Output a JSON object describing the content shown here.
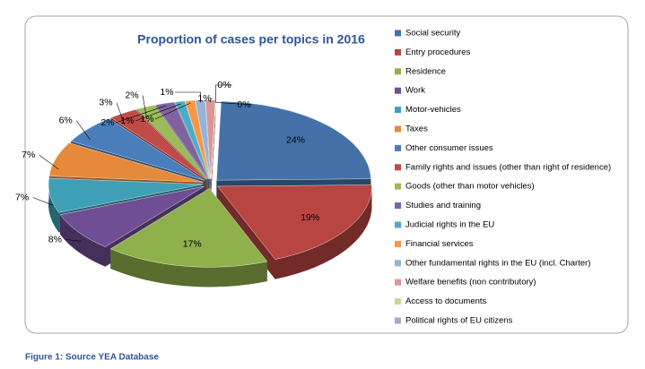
{
  "chart_data": {
    "type": "pie3d",
    "title": "Proportion of cases per topics in 2016",
    "categories": [
      "Social security",
      "Entry procedures",
      "Residence",
      "Work",
      "Motor-vehicles",
      "Taxes",
      "Other consumer issues",
      "Family rights and issues (other than right of residence)",
      "Goods (other than motor vehicles)",
      "Studies and training",
      "Judicial rights in the EU",
      "Financial services",
      "Other fundamental rights in the EU (incl. Charter)",
      "Welfare benefits (non contributory)",
      "Access to documents",
      "Political rights of EU citizens"
    ],
    "values": [
      24,
      19,
      17,
      8,
      7,
      7,
      6,
      3,
      2,
      2,
      1,
      1,
      1,
      1,
      0,
      0
    ],
    "value_labels": [
      "24%",
      "19%",
      "17%",
      "8%",
      "7%",
      "7%",
      "6%",
      "3%",
      "2%",
      "2%",
      "1%",
      "1%",
      "1%",
      "1%",
      "0%",
      "0%"
    ],
    "colors": [
      "#4472a8",
      "#b84542",
      "#8fb04a",
      "#6f4e94",
      "#3f9fb7",
      "#e58a3a",
      "#4a7ebb",
      "#c04b48",
      "#9bbb59",
      "#7f63a0",
      "#4bacc6",
      "#f79646",
      "#95b3d7",
      "#d99694",
      "#c3d69b",
      "#b3a2c7"
    ],
    "legend": "right"
  },
  "figure_caption": "Figure 1: Source YEA Database"
}
